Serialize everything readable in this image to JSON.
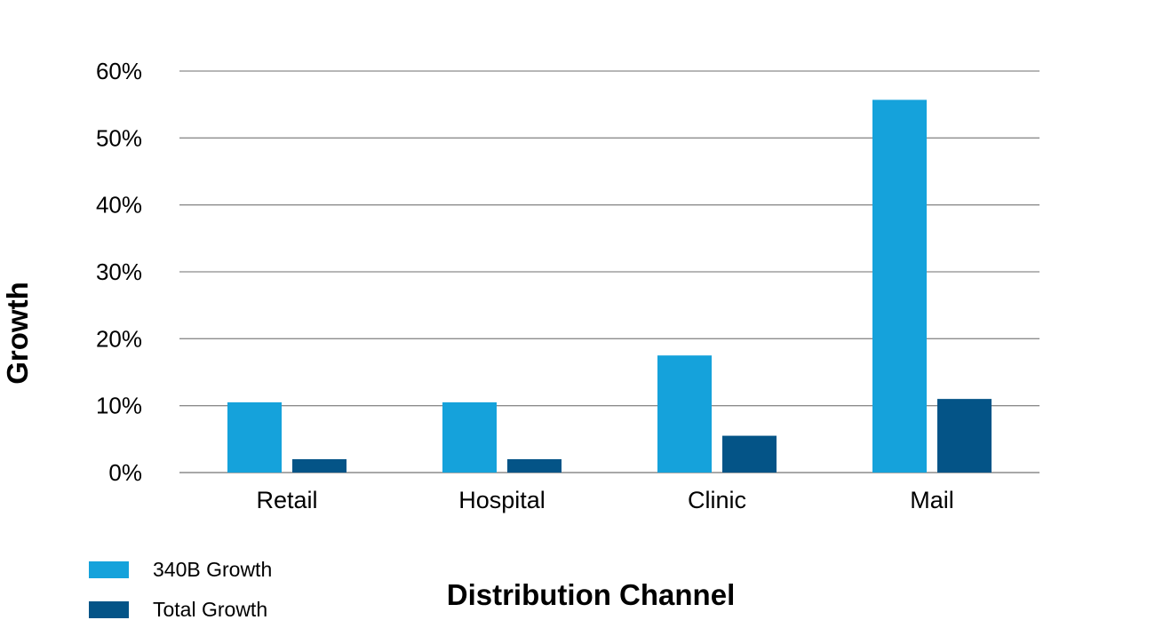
{
  "chart_data": {
    "type": "bar",
    "categories": [
      "Retail",
      "Hospital",
      "Clinic",
      "Mail"
    ],
    "series": [
      {
        "name": "340B Growth",
        "values": [
          10.5,
          10.5,
          17.5,
          55.7
        ],
        "color": "#15a2db"
      },
      {
        "name": "Total Growth",
        "values": [
          2,
          2,
          5.5,
          11
        ],
        "color": "#045487"
      }
    ],
    "title": "",
    "xlabel": "Distribution Channel",
    "ylabel": "Growth",
    "ylim": [
      0,
      60
    ],
    "yticks": [
      "0%",
      "10%",
      "20%",
      "30%",
      "40%",
      "50%",
      "60%"
    ],
    "grid": true,
    "legend_position": "bottom-left"
  }
}
